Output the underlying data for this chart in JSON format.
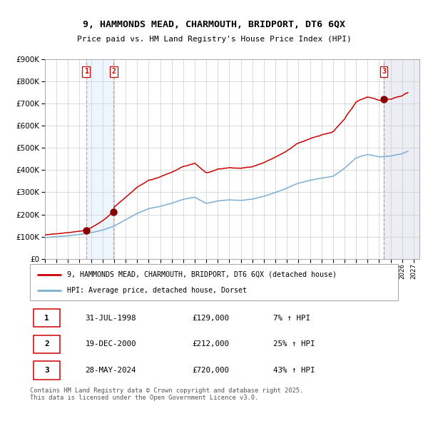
{
  "title_line1": "9, HAMMONDS MEAD, CHARMOUTH, BRIDPORT, DT6 6QX",
  "title_line2": "Price paid vs. HM Land Registry's House Price Index (HPI)",
  "sale_points": [
    {
      "num": 1,
      "date_label": "31-JUL-1998",
      "date_year": 1998.58,
      "price": 129000,
      "pct": "7%",
      "direction": "↑"
    },
    {
      "num": 2,
      "date_label": "19-DEC-2000",
      "date_year": 2000.97,
      "price": 212000,
      "pct": "25%",
      "direction": "↑"
    },
    {
      "num": 3,
      "date_label": "28-MAY-2024",
      "date_year": 2024.41,
      "price": 720000,
      "pct": "43%",
      "direction": "↑"
    }
  ],
  "legend_line1": "9, HAMMONDS MEAD, CHARMOUTH, BRIDPORT, DT6 6QX (detached house)",
  "legend_line2": "HPI: Average price, detached house, Dorset",
  "footer": "Contains HM Land Registry data © Crown copyright and database right 2025.\nThis data is licensed under the Open Government Licence v3.0.",
  "bg_color": "#ffffff",
  "plot_bg_color": "#ffffff",
  "grid_color": "#cccccc",
  "red_line_color": "#cc0000",
  "blue_line_color": "#7bafd4",
  "sale_marker_color": "#880000",
  "dashed_color_12": "#ff8888",
  "dashed_color_3": "#aaaaaa",
  "shade_color_12": "#ddeeff",
  "hatch_color_3": "#ddddee",
  "xmin": 1995.0,
  "xmax": 2027.5,
  "ymin": 0,
  "ymax": 900000,
  "hpi_profile": [
    [
      1995.0,
      1.0
    ],
    [
      1996.0,
      1.04
    ],
    [
      1997.0,
      1.09
    ],
    [
      1998.0,
      1.15
    ],
    [
      1999.0,
      1.24
    ],
    [
      2000.0,
      1.36
    ],
    [
      2001.0,
      1.55
    ],
    [
      2002.0,
      1.85
    ],
    [
      2003.0,
      2.15
    ],
    [
      2004.0,
      2.38
    ],
    [
      2005.0,
      2.48
    ],
    [
      2006.0,
      2.63
    ],
    [
      2007.0,
      2.82
    ],
    [
      2008.0,
      2.92
    ],
    [
      2009.0,
      2.62
    ],
    [
      2010.0,
      2.73
    ],
    [
      2011.0,
      2.78
    ],
    [
      2012.0,
      2.76
    ],
    [
      2013.0,
      2.8
    ],
    [
      2014.0,
      2.94
    ],
    [
      2015.0,
      3.12
    ],
    [
      2016.0,
      3.32
    ],
    [
      2017.0,
      3.56
    ],
    [
      2018.0,
      3.7
    ],
    [
      2019.0,
      3.8
    ],
    [
      2020.0,
      3.88
    ],
    [
      2021.0,
      4.25
    ],
    [
      2022.0,
      4.72
    ],
    [
      2023.0,
      4.88
    ],
    [
      2024.0,
      4.78
    ],
    [
      2025.0,
      4.82
    ],
    [
      2026.0,
      4.92
    ],
    [
      2026.5,
      5.02
    ]
  ],
  "hpi_base": 96000
}
